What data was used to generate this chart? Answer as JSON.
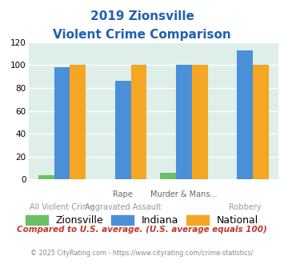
{
  "title_line1": "2019 Zionsville",
  "title_line2": "Violent Crime Comparison",
  "zionsville": [
    4,
    0,
    6,
    0
  ],
  "indiana": [
    98,
    86,
    100,
    113
  ],
  "national": [
    100,
    100,
    100,
    100
  ],
  "color_zionsville": "#6dbf67",
  "color_indiana": "#4a90d9",
  "color_national": "#f5a623",
  "ylim": [
    0,
    120
  ],
  "yticks": [
    0,
    20,
    40,
    60,
    80,
    100,
    120
  ],
  "bg_color": "#deeee8",
  "title_color": "#2060b0",
  "top_labels": [
    "",
    "Rape",
    "Murder & Mans...",
    ""
  ],
  "bot_labels": [
    "All Violent Crime",
    "Aggravated Assault",
    "",
    "Robbery"
  ],
  "footnote1": "Compared to U.S. average. (U.S. average equals 100)",
  "footnote2": "© 2025 CityRating.com - https://www.cityrating.com/crime-statistics/",
  "footnote1_color": "#c0392b",
  "footnote2_color": "#888888"
}
